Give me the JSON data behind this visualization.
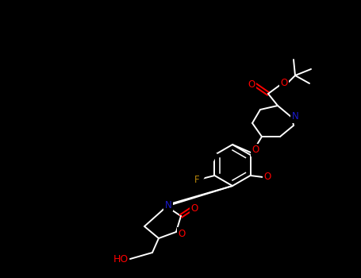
{
  "background_color": "#000000",
  "bond_color": "#ffffff",
  "atom_colors": {
    "O": "#ff0000",
    "N": "#1a1acd",
    "F": "#b8860b",
    "C": "#ffffff"
  },
  "figsize": [
    4.55,
    3.5
  ],
  "dpi": 100,
  "fs": 8.5
}
